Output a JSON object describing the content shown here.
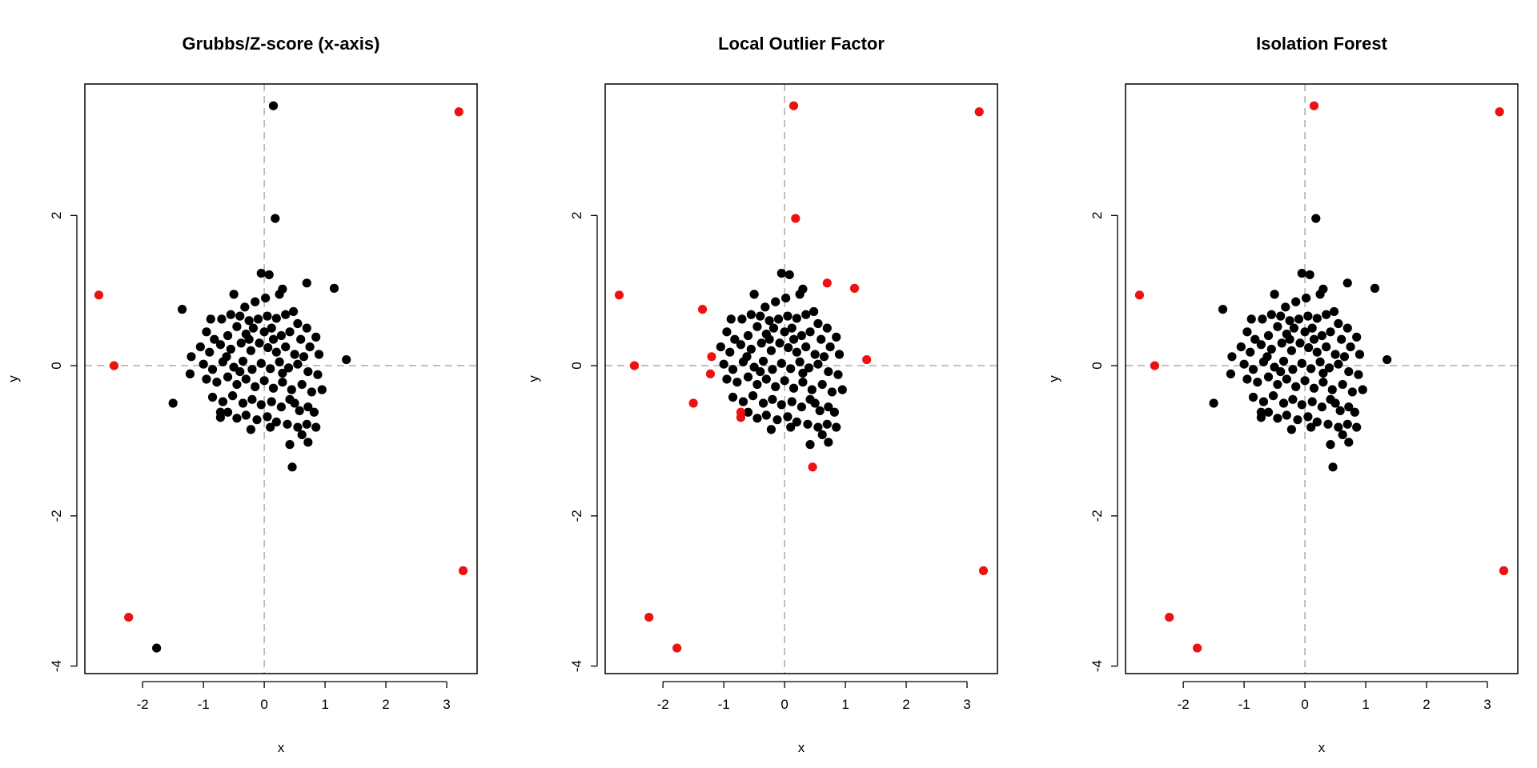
{
  "colors": {
    "normal_point": "#000000",
    "outlier_point": "#ee1111",
    "reference_line": "#b3b3b3",
    "frame": "#000000"
  },
  "chart_data": [
    {
      "type": "scatter",
      "title": "Grubbs/Z-score (x-axis)",
      "xlabel": "x",
      "ylabel": "y",
      "xlim": [
        -2.95,
        3.5
      ],
      "ylim": [
        -4.1,
        3.75
      ],
      "xticks": [
        "-2",
        "-1",
        "0",
        "1",
        "2",
        "3"
      ],
      "yticks": [
        "-4",
        "-2",
        "0",
        "2"
      ],
      "reference_lines": {
        "x": 0,
        "y": 0,
        "style": "dashed"
      },
      "outliers": [
        [
          3.2,
          3.38
        ],
        [
          3.27,
          -2.73
        ],
        [
          -2.72,
          0.94
        ],
        [
          -2.47,
          0.0
        ],
        [
          -2.23,
          -3.35
        ]
      ],
      "highlighted_normals": [
        [
          -1.77,
          -3.76
        ],
        [
          0.15,
          3.46
        ],
        [
          0.18,
          1.96
        ],
        [
          0.46,
          -1.35
        ],
        [
          1.15,
          1.03
        ],
        [
          1.35,
          0.08
        ],
        [
          -1.5,
          -0.5
        ],
        [
          -1.35,
          0.75
        ],
        [
          -1.2,
          0.12
        ],
        [
          -1.22,
          -0.11
        ],
        [
          0.7,
          1.1
        ],
        [
          -0.72,
          -0.62
        ],
        [
          -0.72,
          -0.69
        ]
      ]
    },
    {
      "type": "scatter",
      "title": "Local Outlier Factor",
      "xlabel": "x",
      "ylabel": "y",
      "xlim": [
        -2.95,
        3.5
      ],
      "ylim": [
        -4.1,
        3.75
      ],
      "xticks": [
        "-2",
        "-1",
        "0",
        "1",
        "2",
        "3"
      ],
      "yticks": [
        "-4",
        "-2",
        "0",
        "2"
      ],
      "reference_lines": {
        "x": 0,
        "y": 0,
        "style": "dashed"
      },
      "outliers": [
        [
          3.2,
          3.38
        ],
        [
          3.27,
          -2.73
        ],
        [
          -2.72,
          0.94
        ],
        [
          -2.47,
          0.0
        ],
        [
          -2.23,
          -3.35
        ],
        [
          -1.77,
          -3.76
        ],
        [
          0.15,
          3.46
        ],
        [
          0.18,
          1.96
        ],
        [
          0.46,
          -1.35
        ],
        [
          1.15,
          1.03
        ],
        [
          1.35,
          0.08
        ],
        [
          -1.5,
          -0.5
        ],
        [
          -1.35,
          0.75
        ],
        [
          -1.2,
          0.12
        ],
        [
          -1.22,
          -0.11
        ],
        [
          0.7,
          1.1
        ],
        [
          -0.72,
          -0.62
        ],
        [
          -0.72,
          -0.69
        ]
      ],
      "highlighted_normals": []
    },
    {
      "type": "scatter",
      "title": "Isolation Forest",
      "xlabel": "x",
      "ylabel": "y",
      "xlim": [
        -2.95,
        3.5
      ],
      "ylim": [
        -4.1,
        3.75
      ],
      "xticks": [
        "-2",
        "-1",
        "0",
        "1",
        "2",
        "3"
      ],
      "yticks": [
        "-4",
        "-2",
        "0",
        "2"
      ],
      "reference_lines": {
        "x": 0,
        "y": 0,
        "style": "dashed"
      },
      "outliers": [
        [
          3.2,
          3.38
        ],
        [
          3.27,
          -2.73
        ],
        [
          -2.72,
          0.94
        ],
        [
          -2.47,
          0.0
        ],
        [
          -2.23,
          -3.35
        ],
        [
          -1.77,
          -3.76
        ],
        [
          0.15,
          3.46
        ]
      ],
      "highlighted_normals": [
        [
          0.18,
          1.96
        ],
        [
          0.46,
          -1.35
        ],
        [
          1.15,
          1.03
        ],
        [
          1.35,
          0.08
        ],
        [
          -1.5,
          -0.5
        ],
        [
          -1.35,
          0.75
        ],
        [
          -1.2,
          0.12
        ],
        [
          -1.22,
          -0.11
        ],
        [
          0.7,
          1.1
        ],
        [
          -0.72,
          -0.62
        ],
        [
          -0.72,
          -0.69
        ]
      ]
    }
  ],
  "cluster_points": [
    [
      -0.05,
      1.23
    ],
    [
      0.08,
      1.21
    ],
    [
      0.3,
      1.02
    ],
    [
      0.25,
      0.95
    ],
    [
      0.02,
      0.9
    ],
    [
      -0.5,
      0.95
    ],
    [
      -0.15,
      0.85
    ],
    [
      -0.88,
      0.62
    ],
    [
      -0.7,
      0.62
    ],
    [
      -0.55,
      0.68
    ],
    [
      -0.4,
      0.66
    ],
    [
      -0.25,
      0.6
    ],
    [
      -0.1,
      0.62
    ],
    [
      0.05,
      0.66
    ],
    [
      0.2,
      0.63
    ],
    [
      0.35,
      0.68
    ],
    [
      0.55,
      0.56
    ],
    [
      0.7,
      0.5
    ],
    [
      0.85,
      0.38
    ],
    [
      -0.95,
      0.45
    ],
    [
      -0.82,
      0.35
    ],
    [
      -0.6,
      0.4
    ],
    [
      -0.45,
      0.52
    ],
    [
      -0.3,
      0.42
    ],
    [
      -0.18,
      0.5
    ],
    [
      0.0,
      0.45
    ],
    [
      0.12,
      0.5
    ],
    [
      0.28,
      0.4
    ],
    [
      0.42,
      0.45
    ],
    [
      0.6,
      0.35
    ],
    [
      0.75,
      0.25
    ],
    [
      -1.05,
      0.25
    ],
    [
      -0.9,
      0.18
    ],
    [
      -0.72,
      0.28
    ],
    [
      -0.55,
      0.22
    ],
    [
      -0.38,
      0.3
    ],
    [
      -0.22,
      0.2
    ],
    [
      -0.08,
      0.3
    ],
    [
      0.06,
      0.24
    ],
    [
      0.2,
      0.18
    ],
    [
      0.35,
      0.25
    ],
    [
      0.5,
      0.15
    ],
    [
      0.65,
      0.12
    ],
    [
      0.9,
      0.15
    ],
    [
      -1.0,
      0.02
    ],
    [
      -0.85,
      -0.05
    ],
    [
      -0.68,
      0.05
    ],
    [
      -0.5,
      -0.02
    ],
    [
      -0.35,
      0.06
    ],
    [
      -0.2,
      -0.05
    ],
    [
      -0.05,
      0.03
    ],
    [
      0.1,
      -0.04
    ],
    [
      0.25,
      0.05
    ],
    [
      0.4,
      -0.03
    ],
    [
      0.55,
      0.02
    ],
    [
      0.72,
      -0.08
    ],
    [
      0.88,
      -0.12
    ],
    [
      -0.95,
      -0.18
    ],
    [
      -0.78,
      -0.22
    ],
    [
      -0.6,
      -0.15
    ],
    [
      -0.45,
      -0.25
    ],
    [
      -0.3,
      -0.18
    ],
    [
      -0.15,
      -0.28
    ],
    [
      0.0,
      -0.2
    ],
    [
      0.15,
      -0.3
    ],
    [
      0.3,
      -0.22
    ],
    [
      0.45,
      -0.32
    ],
    [
      0.62,
      -0.25
    ],
    [
      0.78,
      -0.35
    ],
    [
      0.95,
      -0.32
    ],
    [
      -0.85,
      -0.42
    ],
    [
      -0.68,
      -0.48
    ],
    [
      -0.52,
      -0.4
    ],
    [
      -0.35,
      -0.5
    ],
    [
      -0.2,
      -0.45
    ],
    [
      -0.05,
      -0.52
    ],
    [
      0.12,
      -0.48
    ],
    [
      0.28,
      -0.55
    ],
    [
      0.42,
      -0.45
    ],
    [
      0.58,
      -0.6
    ],
    [
      0.72,
      -0.55
    ],
    [
      0.82,
      -0.62
    ],
    [
      -0.6,
      -0.62
    ],
    [
      -0.45,
      -0.7
    ],
    [
      -0.3,
      -0.66
    ],
    [
      -0.12,
      -0.72
    ],
    [
      0.05,
      -0.68
    ],
    [
      0.2,
      -0.75
    ],
    [
      0.38,
      -0.78
    ],
    [
      0.55,
      -0.82
    ],
    [
      0.7,
      -0.78
    ],
    [
      0.85,
      -0.82
    ],
    [
      -0.22,
      -0.85
    ],
    [
      0.1,
      -0.82
    ],
    [
      0.62,
      -0.92
    ],
    [
      0.72,
      -1.02
    ],
    [
      0.42,
      -1.05
    ],
    [
      -0.32,
      0.78
    ],
    [
      0.48,
      0.72
    ],
    [
      -0.62,
      0.12
    ],
    [
      0.3,
      -0.1
    ],
    [
      0.15,
      0.35
    ],
    [
      -0.4,
      -0.08
    ],
    [
      0.5,
      -0.5
    ],
    [
      -0.25,
      0.35
    ]
  ]
}
